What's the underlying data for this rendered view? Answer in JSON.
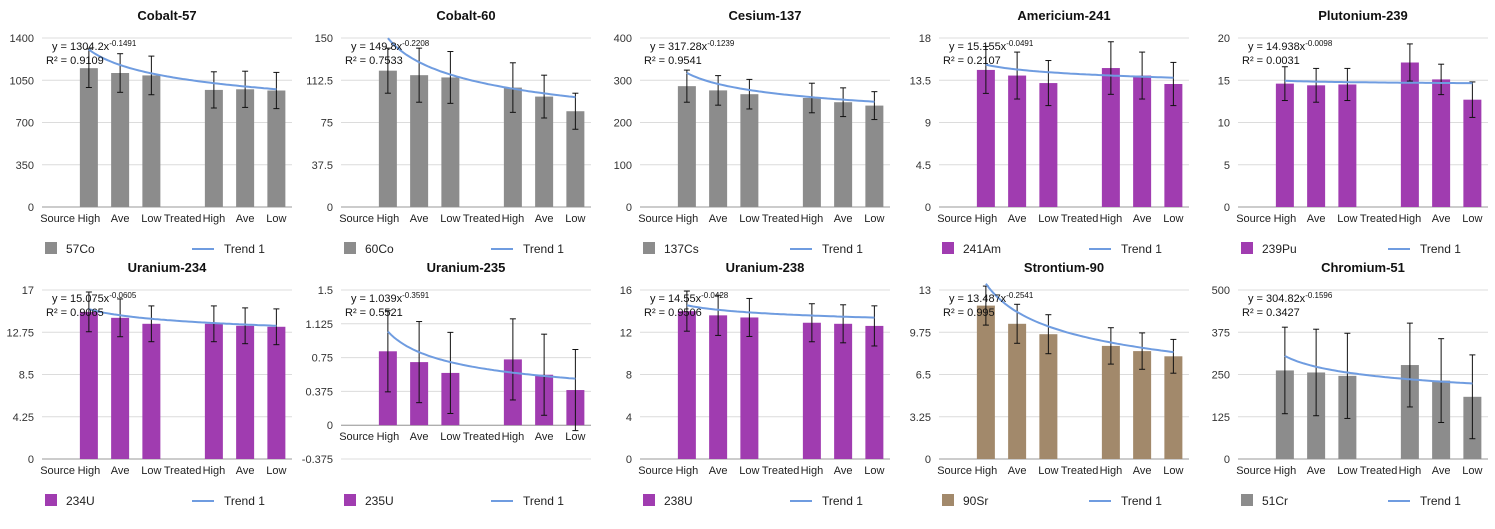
{
  "colors": {
    "gray": "#8c8c8c",
    "purple": "#a03cb0",
    "brown": "#a2896b",
    "trend": "#6f9ce0"
  },
  "chart_data": [
    {
      "type": "bar",
      "title": "Cobalt-57",
      "categories": [
        "Source",
        "High",
        "Ave",
        "Low",
        "Treated",
        "High",
        "Ave",
        "Low"
      ],
      "series": [
        {
          "name": "57Co",
          "values": [
            null,
            1150,
            1110,
            1090,
            null,
            970,
            975,
            965
          ]
        }
      ],
      "error": [
        null,
        160,
        160,
        160,
        null,
        150,
        150,
        150
      ],
      "trend": {
        "name": "Trend 1",
        "a": 1304.2,
        "b": -0.1491,
        "equation": "y = 1304.2x",
        "exponent": "-0.1491",
        "r2": "R² = 0.9109"
      },
      "ylim": [
        0,
        1400
      ],
      "yticks": [
        "0",
        "350",
        "700",
        "1050",
        "1400"
      ],
      "color": "gray",
      "grid": true,
      "legend": "bottom"
    },
    {
      "type": "bar",
      "title": "Cobalt-60",
      "categories": [
        "Source",
        "High",
        "Ave",
        "Low",
        "Treated",
        "High",
        "Ave",
        "Low"
      ],
      "series": [
        {
          "name": "60Co",
          "values": [
            null,
            121,
            117,
            115,
            null,
            106,
            98,
            85
          ]
        }
      ],
      "error": [
        null,
        20,
        24,
        23,
        null,
        22,
        19,
        16
      ],
      "trend": {
        "name": "Trend 1",
        "a": 149.8,
        "b": -0.2208,
        "equation": "y = 149.8x",
        "exponent": "-0.2208",
        "r2": "R² = 0.7533"
      },
      "ylim": [
        0,
        150
      ],
      "yticks": [
        "0",
        "37.5",
        "75",
        "112.5",
        "150"
      ],
      "color": "gray",
      "grid": true,
      "legend": "bottom"
    },
    {
      "type": "bar",
      "title": "Cesium-137",
      "categories": [
        "Source",
        "High",
        "Ave",
        "Low",
        "Treated",
        "High",
        "Ave",
        "Low"
      ],
      "series": [
        {
          "name": "137Cs",
          "values": [
            null,
            286,
            276,
            267,
            null,
            258,
            248,
            240
          ]
        }
      ],
      "error": [
        null,
        38,
        35,
        35,
        null,
        35,
        34,
        33
      ],
      "trend": {
        "name": "Trend 1",
        "a": 317.28,
        "b": -0.1239,
        "equation": "y = 317.28x",
        "exponent": "-0.1239",
        "r2": "R² = 0.9541"
      },
      "ylim": [
        0,
        400
      ],
      "yticks": [
        "0",
        "100",
        "200",
        "300",
        "400"
      ],
      "color": "gray",
      "grid": true,
      "legend": "bottom"
    },
    {
      "type": "bar",
      "title": "Americium-241",
      "categories": [
        "Source",
        "High",
        "Ave",
        "Low",
        "Treated",
        "High",
        "Ave",
        "Low"
      ],
      "series": [
        {
          "name": "241Am",
          "values": [
            null,
            14.6,
            14.0,
            13.2,
            null,
            14.8,
            14.0,
            13.1
          ]
        }
      ],
      "error": [
        null,
        2.5,
        2.5,
        2.4,
        null,
        2.8,
        2.5,
        2.3
      ],
      "trend": {
        "name": "Trend 1",
        "a": 15.155,
        "b": -0.0491,
        "equation": "y = 15.155x",
        "exponent": "-0.0491",
        "r2": "R² = 0.2107"
      },
      "ylim": [
        0,
        18
      ],
      "yticks": [
        "0",
        "4.5",
        "9",
        "13.5",
        "18"
      ],
      "color": "purple",
      "grid": true,
      "legend": "bottom"
    },
    {
      "type": "bar",
      "title": "Plutonium-239",
      "categories": [
        "Source",
        "High",
        "Ave",
        "Low",
        "Treated",
        "High",
        "Ave",
        "Low"
      ],
      "series": [
        {
          "name": "239Pu",
          "values": [
            null,
            14.6,
            14.4,
            14.5,
            null,
            17.1,
            15.1,
            12.7
          ]
        }
      ],
      "error": [
        null,
        2.0,
        2.0,
        1.9,
        null,
        2.2,
        1.8,
        2.1
      ],
      "trend": {
        "name": "Trend 1",
        "a": 14.938,
        "b": -0.0098,
        "equation": "y = 14.938x",
        "exponent": "-0.0098",
        "r2": "R² = 0.0031"
      },
      "ylim": [
        0,
        20
      ],
      "yticks": [
        "0",
        "5",
        "10",
        "15",
        "20"
      ],
      "color": "purple",
      "grid": true,
      "legend": "bottom"
    },
    {
      "type": "bar",
      "title": "Uranium-234",
      "categories": [
        "Source",
        "High",
        "Ave",
        "Low",
        "Treated",
        "High",
        "Ave",
        "Low"
      ],
      "series": [
        {
          "name": "234U",
          "values": [
            null,
            14.8,
            14.2,
            13.6,
            null,
            13.6,
            13.4,
            13.3
          ]
        }
      ],
      "error": [
        null,
        2.0,
        1.9,
        1.8,
        null,
        1.8,
        1.8,
        1.8
      ],
      "trend": {
        "name": "Trend 1",
        "a": 15.075,
        "b": -0.0605,
        "equation": "y = 15.075x",
        "exponent": "-0.0605",
        "r2": "R² = 0.9065"
      },
      "ylim": [
        0,
        17
      ],
      "yticks": [
        "0",
        "4.25",
        "8.5",
        "12.75",
        "17"
      ],
      "color": "purple",
      "grid": true,
      "legend": "bottom"
    },
    {
      "type": "bar",
      "title": "Uranium-235",
      "categories": [
        "Source",
        "High",
        "Ave",
        "Low",
        "Treated",
        "High",
        "Ave",
        "Low"
      ],
      "series": [
        {
          "name": "235U",
          "values": [
            null,
            0.82,
            0.7,
            0.58,
            null,
            0.73,
            0.56,
            0.39
          ]
        }
      ],
      "error": [
        null,
        0.45,
        0.45,
        0.45,
        null,
        0.45,
        0.45,
        0.45
      ],
      "trend": {
        "name": "Trend 1",
        "a": 1.039,
        "b": -0.3591,
        "equation": "y = 1.039x",
        "exponent": "-0.3591",
        "r2": "R² = 0.5521"
      },
      "ylim": [
        -0.375,
        1.5
      ],
      "yticks": [
        "-0.375",
        "0",
        "0.375",
        "0.75",
        "1.125",
        "1.5"
      ],
      "color": "purple",
      "grid": true,
      "legend": "bottom"
    },
    {
      "type": "bar",
      "title": "Uranium-238",
      "categories": [
        "Source",
        "High",
        "Ave",
        "Low",
        "Treated",
        "High",
        "Ave",
        "Low"
      ],
      "series": [
        {
          "name": "238U",
          "values": [
            null,
            14.0,
            13.6,
            13.4,
            null,
            12.9,
            12.8,
            12.6
          ]
        }
      ],
      "error": [
        null,
        1.9,
        1.9,
        1.8,
        null,
        1.8,
        1.8,
        1.9
      ],
      "trend": {
        "name": "Trend 1",
        "a": 14.55,
        "b": -0.0428,
        "equation": "y = 14.55x",
        "exponent": "-0.0428",
        "r2": "R² = 0.9506"
      },
      "ylim": [
        0,
        16
      ],
      "yticks": [
        "0",
        "4",
        "8",
        "12",
        "16"
      ],
      "color": "purple",
      "grid": true,
      "legend": "bottom"
    },
    {
      "type": "bar",
      "title": "Strontium-90",
      "categories": [
        "Source",
        "High",
        "Ave",
        "Low",
        "Treated",
        "High",
        "Ave",
        "Low"
      ],
      "series": [
        {
          "name": "90Sr",
          "values": [
            null,
            11.8,
            10.4,
            9.6,
            null,
            8.7,
            8.3,
            7.9
          ]
        }
      ],
      "error": [
        null,
        1.5,
        1.5,
        1.5,
        null,
        1.4,
        1.4,
        1.3
      ],
      "trend": {
        "name": "Trend 1",
        "a": 13.487,
        "b": -0.2541,
        "equation": "y = 13.487x",
        "exponent": "-0.2541",
        "r2": "R² = 0.995"
      },
      "ylim": [
        0,
        13
      ],
      "yticks": [
        "0",
        "3.25",
        "6.5",
        "9.75",
        "13"
      ],
      "color": "brown",
      "grid": true,
      "legend": "bottom"
    },
    {
      "type": "bar",
      "title": "Chromium-51",
      "categories": [
        "Source",
        "High",
        "Ave",
        "Low",
        "Treated",
        "High",
        "Ave",
        "Low"
      ],
      "series": [
        {
          "name": "51Cr",
          "values": [
            null,
            262,
            256,
            246,
            null,
            278,
            232,
            184
          ]
        }
      ],
      "error": [
        null,
        128,
        128,
        126,
        null,
        124,
        124,
        124
      ],
      "trend": {
        "name": "Trend 1",
        "a": 304.82,
        "b": -0.1596,
        "equation": "y = 304.82x",
        "exponent": "-0.1596",
        "r2": "R² = 0.3427"
      },
      "ylim": [
        0,
        500
      ],
      "yticks": [
        "0",
        "125",
        "250",
        "375",
        "500"
      ],
      "color": "gray",
      "grid": true,
      "legend": "bottom"
    }
  ]
}
